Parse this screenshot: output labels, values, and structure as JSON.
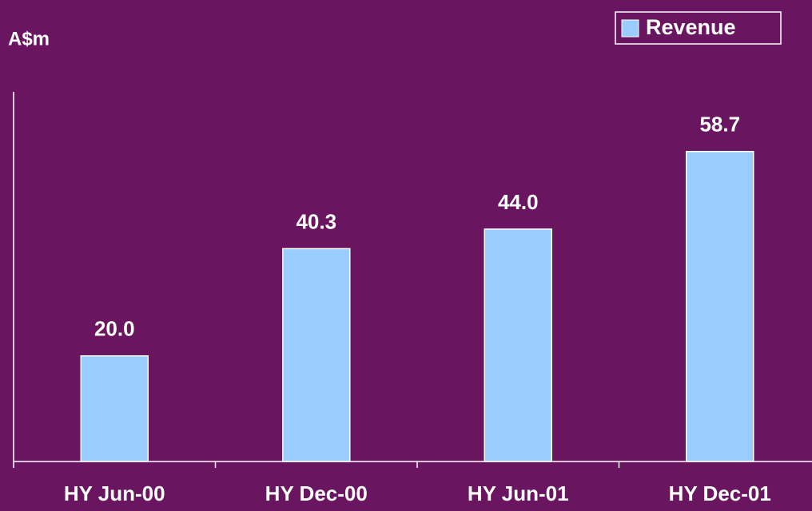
{
  "chart_data": {
    "type": "bar",
    "y_label": "A$m",
    "categories": [
      "HY Jun-00",
      "HY Dec-00",
      "HY Jun-01",
      "HY Dec-01"
    ],
    "series": [
      {
        "name": "Revenue",
        "color": "#99ccff",
        "values": [
          20.0,
          40.3,
          44.0,
          58.7
        ],
        "value_labels": [
          "20.0",
          "40.3",
          "44.0",
          "58.7"
        ]
      }
    ],
    "ylim": [
      0,
      70
    ],
    "legend": "top-right"
  }
}
